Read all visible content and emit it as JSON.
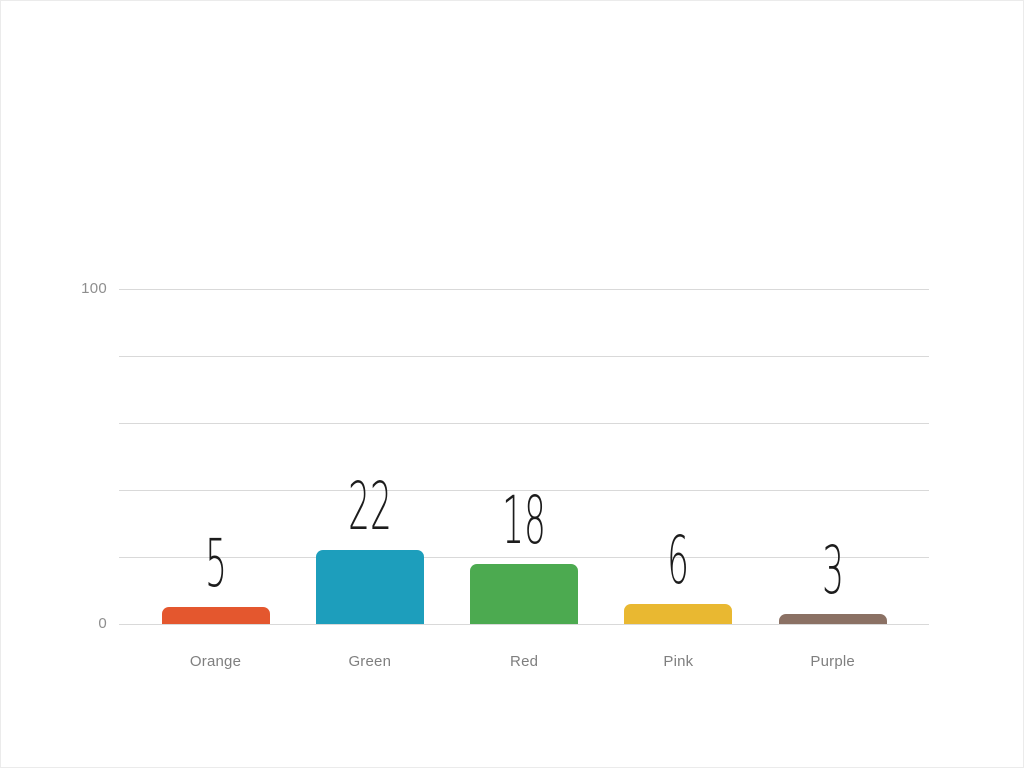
{
  "chart_data": {
    "type": "bar",
    "title": "",
    "xlabel": "",
    "ylabel": "",
    "categories": [
      "Orange",
      "Green",
      "Red",
      "Pink",
      "Purple"
    ],
    "values": [
      5,
      22,
      18,
      6,
      3
    ],
    "bar_colors": [
      "#e4572e",
      "#1d9ebc",
      "#4caa50",
      "#e9b831",
      "#8b7164"
    ],
    "ylim": [
      0,
      100
    ],
    "gridlines": [
      0,
      20,
      40,
      60,
      80,
      100
    ],
    "y_ticks": [
      {
        "value": 100,
        "label": "100"
      },
      {
        "value": 0,
        "label": "0"
      }
    ],
    "grid": "horizontal",
    "legend": "none",
    "gridline_color": "#d9d9d9",
    "value_label_color": "#1c1c1c",
    "category_label_color": "#7f7f7f",
    "axis_tick_color": "#8e8e8e",
    "background_color": "#ffffff"
  }
}
